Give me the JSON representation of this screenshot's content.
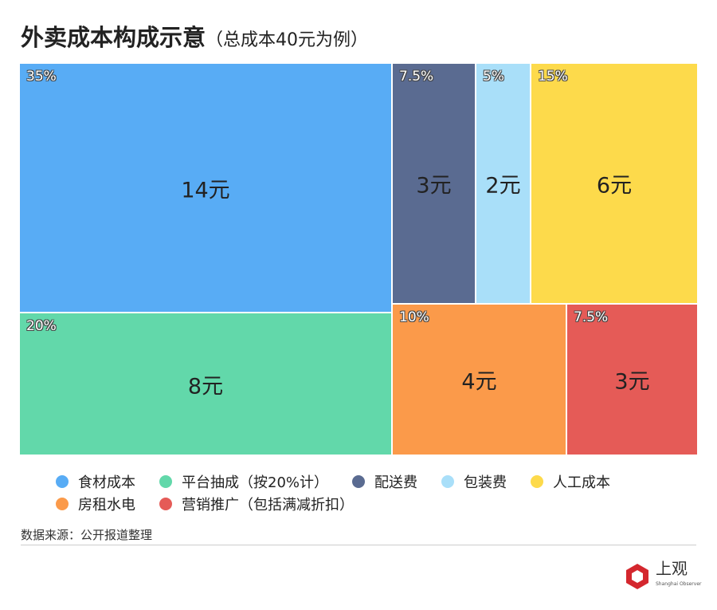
{
  "chart_data": {
    "type": "treemap",
    "title": "外卖成本构成示意",
    "subtitle": "（总成本40元为例）",
    "items": [
      {
        "name": "食材成本",
        "value": 14,
        "value_label": "14元",
        "percent": "35%",
        "color": "#58ACF5"
      },
      {
        "name": "平台抽成（按20%计）",
        "value": 8,
        "value_label": "8元",
        "percent": "20%",
        "color": "#62D8AA"
      },
      {
        "name": "配送费",
        "value": 3,
        "value_label": "3元",
        "percent": "7.5%",
        "color": "#5A6B91"
      },
      {
        "name": "包装费",
        "value": 2,
        "value_label": "2元",
        "percent": "5%",
        "color": "#A9DFF9"
      },
      {
        "name": "人工成本",
        "value": 6,
        "value_label": "6元",
        "percent": "15%",
        "color": "#FDDA4B"
      },
      {
        "name": "房租水电",
        "value": 4,
        "value_label": "4元",
        "percent": "10%",
        "color": "#FB9A4A"
      },
      {
        "name": "营销推广（包括满减折扣）",
        "value": 3,
        "value_label": "3元",
        "percent": "7.5%",
        "color": "#E55B57"
      }
    ],
    "legend_position": "bottom"
  },
  "source": "数据来源：公开报道整理",
  "logo": {
    "text": "上观",
    "en": "Shanghai Observer",
    "color": "#D4272E"
  }
}
